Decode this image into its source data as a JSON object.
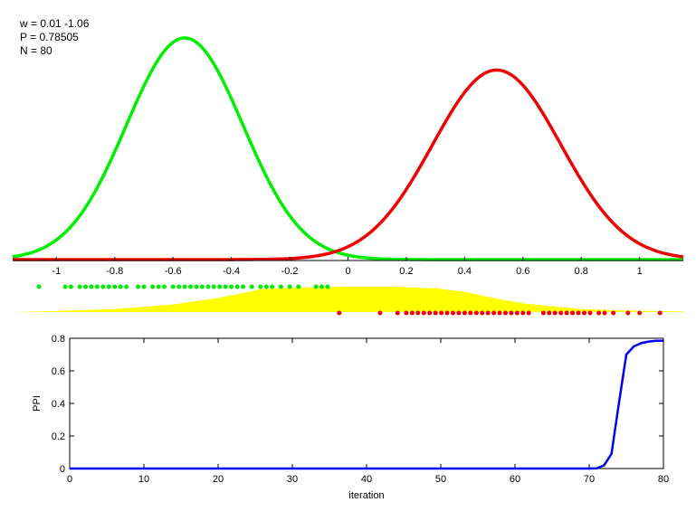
{
  "info": {
    "w": "w = 0.01  -1.06",
    "p": "P = 0.78505",
    "n": "N = 80"
  },
  "chart_data": [
    {
      "type": "line",
      "series": [
        {
          "color": "#00ee00",
          "kind": "gaussian",
          "mean": -0.56,
          "sd": 0.2,
          "peak": 1.0
        },
        {
          "color": "#ee0000",
          "kind": "gaussian",
          "mean": 0.51,
          "sd": 0.22,
          "peak": 0.855
        }
      ],
      "xlim": [
        -1.15,
        1.15
      ],
      "ylim": [
        0,
        1.02
      ],
      "xticks": [
        -1,
        -0.8,
        -0.6,
        -0.4,
        -0.2,
        0,
        0.2,
        0.4,
        0.6,
        0.8,
        1
      ],
      "xtick_labels": [
        "-1",
        "-0.8",
        "-0.6",
        "-0.4",
        "-0.2",
        "0",
        "0.2",
        "0.4",
        "0.6",
        "0.8",
        "1"
      ]
    },
    {
      "type": "area",
      "fill_color": "#ffff00",
      "profile_x": [
        -1.15,
        -1.0,
        -0.8,
        -0.6,
        -0.45,
        -0.35,
        -0.3,
        -0.15,
        0,
        0.15,
        0.3,
        0.4,
        0.5,
        0.6,
        0.7,
        0.8,
        0.9,
        1.0,
        1.15
      ],
      "profile_y": [
        0.0,
        0.04,
        0.12,
        0.3,
        0.55,
        0.78,
        0.9,
        0.97,
        1.0,
        1.0,
        0.94,
        0.8,
        0.55,
        0.35,
        0.22,
        0.12,
        0.08,
        0.05,
        0.03
      ],
      "green_points": [
        -1.06,
        -0.97,
        -0.95,
        -0.92,
        -0.9,
        -0.88,
        -0.86,
        -0.84,
        -0.82,
        -0.8,
        -0.78,
        -0.76,
        -0.72,
        -0.7,
        -0.67,
        -0.65,
        -0.63,
        -0.6,
        -0.58,
        -0.56,
        -0.54,
        -0.52,
        -0.5,
        -0.48,
        -0.46,
        -0.44,
        -0.42,
        -0.4,
        -0.38,
        -0.36,
        -0.33,
        -0.3,
        -0.28,
        -0.26,
        -0.23,
        -0.2,
        -0.17,
        -0.11,
        -0.09,
        -0.07
      ],
      "red_points": [
        -0.03,
        0.11,
        0.17,
        0.2,
        0.22,
        0.24,
        0.26,
        0.28,
        0.3,
        0.32,
        0.34,
        0.36,
        0.38,
        0.4,
        0.42,
        0.44,
        0.46,
        0.48,
        0.5,
        0.52,
        0.54,
        0.56,
        0.58,
        0.6,
        0.62,
        0.67,
        0.69,
        0.71,
        0.73,
        0.75,
        0.77,
        0.79,
        0.81,
        0.83,
        0.86,
        0.88,
        0.91,
        0.96,
        1.0,
        1.07
      ]
    },
    {
      "type": "line",
      "xlabel": "iteration",
      "ylabel": "PPI",
      "xlim": [
        0,
        80
      ],
      "ylim": [
        0,
        0.8
      ],
      "xticks": [
        0,
        10,
        20,
        30,
        40,
        50,
        60,
        70,
        80
      ],
      "xtick_labels": [
        "0",
        "10",
        "20",
        "30",
        "40",
        "50",
        "60",
        "70",
        "80"
      ],
      "yticks": [
        0,
        0.2,
        0.4,
        0.6,
        0.8
      ],
      "ytick_labels": [
        "0",
        "0.2",
        "0.4",
        "0.6",
        "0.8"
      ],
      "series": [
        {
          "color": "#0000ee",
          "x": [
            0,
            70,
            71,
            72,
            73,
            74,
            75,
            76,
            77,
            78,
            79,
            80
          ],
          "y": [
            0,
            0,
            0.001,
            0.02,
            0.09,
            0.4,
            0.7,
            0.75,
            0.77,
            0.78,
            0.785,
            0.785
          ]
        }
      ]
    }
  ]
}
